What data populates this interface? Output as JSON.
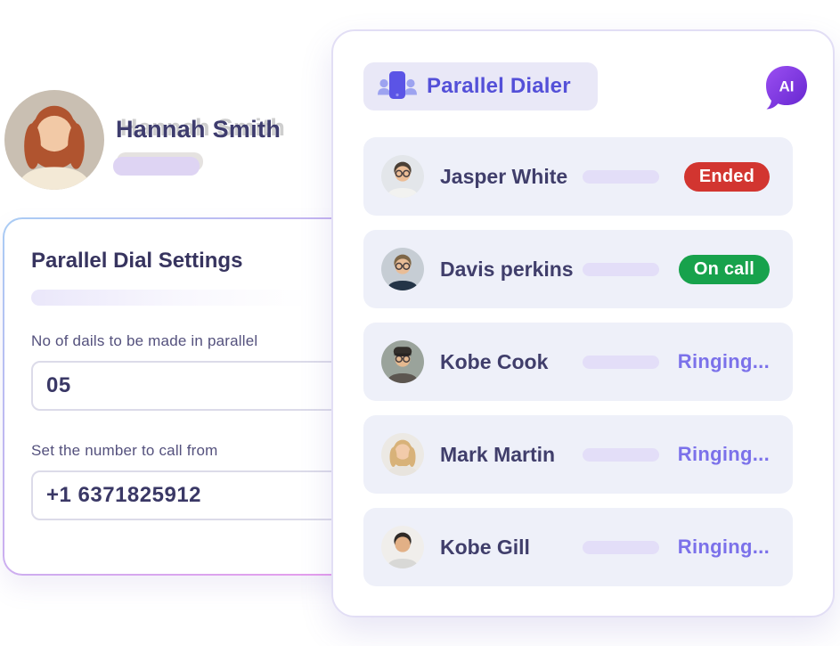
{
  "profile": {
    "name": "Hannah Smith",
    "avatar": {
      "bg": "#c9bfb2",
      "skin": "#f2c9a6",
      "hair": "#b0542f",
      "shirt": "#f3e9d6",
      "glasses": false,
      "style": "long"
    }
  },
  "settings_card": {
    "title": "Parallel Dial Settings",
    "fields": [
      {
        "label": "No of dails to be made in parallel",
        "value": "05"
      },
      {
        "label": "Set the number to call from",
        "value": "+1 6371825912"
      }
    ]
  },
  "dialer_card": {
    "title": "Parallel Dialer",
    "ai_badge_label": "AI",
    "rows": [
      {
        "name": "Jasper White",
        "status": "Ended",
        "status_type": "ended",
        "avatar": {
          "bg": "#e3e6ea",
          "skin": "#ecbd96",
          "hair": "#4a3f35",
          "shirt": "#f2f2f0",
          "glasses": true,
          "style": "short"
        }
      },
      {
        "name": "Davis perkins",
        "status": "On call",
        "status_type": "oncall",
        "avatar": {
          "bg": "#c6cdd4",
          "skin": "#e9bd97",
          "hair": "#7d6647",
          "shirt": "#243447",
          "glasses": true,
          "style": "short"
        }
      },
      {
        "name": "Kobe Cook",
        "status": "Ringing...",
        "status_type": "ringing",
        "avatar": {
          "bg": "#9aa39b",
          "skin": "#e5b98f",
          "hair": "#332f2b",
          "shirt": "#5c5650",
          "glasses": true,
          "style": "beanie"
        }
      },
      {
        "name": "Mark Martin",
        "status": "Ringing...",
        "status_type": "ringing",
        "avatar": {
          "bg": "#ece9e4",
          "skin": "#f2cbaa",
          "hair": "#d8b279",
          "shirt": "#e8e4de",
          "glasses": false,
          "style": "long"
        }
      },
      {
        "name": "Kobe Gill",
        "status": "Ringing...",
        "status_type": "ringing",
        "avatar": {
          "bg": "#f0eeeb",
          "skin": "#e2b086",
          "hair": "#2f2a26",
          "shirt": "#d8d8d6",
          "glasses": false,
          "style": "short"
        }
      }
    ]
  },
  "colors": {
    "accent": "#5450d8",
    "name_text": "#403e6b",
    "ringing_text": "#7b71ea",
    "ended_badge": "#d23530",
    "oncall_badge": "#17a24c",
    "row_background": "#eef0f9",
    "header_pill": "#e9e8f7",
    "ai_gradient_start": "#9b4ff2",
    "ai_gradient_end": "#6526cf",
    "settings_border_start": "#a9ccf4",
    "settings_border_end": "#e79bec"
  }
}
